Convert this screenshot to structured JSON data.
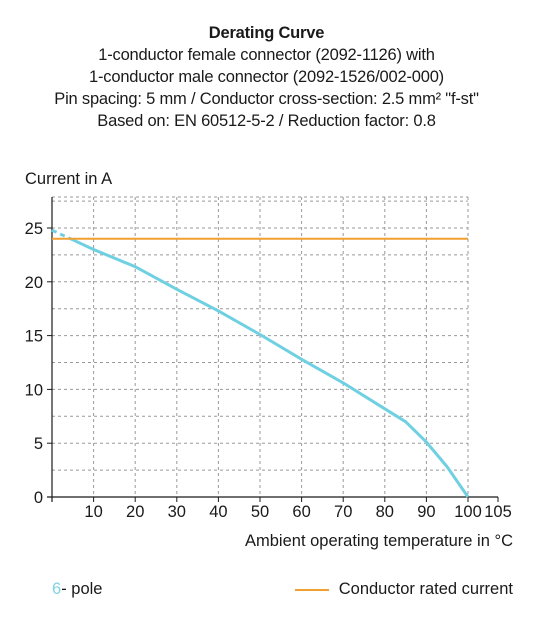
{
  "titles": {
    "main": "Derating Curve",
    "line1": "1-conductor female connector (2092-1126) with",
    "line2": "1-conductor male connector (2092-1526/002-000)",
    "line3": "Pin spacing: 5 mm / Conductor cross-section: 2.5 mm² \"f-st\"",
    "line4": "Based on: EN 60512-5-2 / Reduction factor: 0.8"
  },
  "chart_data": {
    "type": "line",
    "title": "Derating Curve",
    "xlabel": "Ambient operating temperature in °C",
    "ylabel": "Current in A",
    "xlim": [
      0,
      105
    ],
    "ylim": [
      0,
      25
    ],
    "x_ticks": [
      10,
      20,
      30,
      40,
      50,
      60,
      70,
      80,
      90,
      100,
      105
    ],
    "y_ticks": [
      0,
      5,
      10,
      15,
      20,
      25
    ],
    "grid": true,
    "series": [
      {
        "name": "6- pole",
        "color": "#6fd0e2",
        "dashed_segment": [
          [
            0,
            24.8
          ],
          [
            5,
            23.9
          ]
        ],
        "points": [
          [
            5,
            23.9
          ],
          [
            10,
            23.0
          ],
          [
            20,
            21.4
          ],
          [
            30,
            19.3
          ],
          [
            40,
            17.3
          ],
          [
            50,
            15.1
          ],
          [
            60,
            12.8
          ],
          [
            70,
            10.6
          ],
          [
            80,
            8.2
          ],
          [
            85,
            7.0
          ],
          [
            90,
            5.1
          ],
          [
            95,
            2.8
          ],
          [
            100,
            0
          ]
        ]
      },
      {
        "name": "Conductor rated current",
        "color": "#f0a030",
        "points": [
          [
            0,
            24
          ],
          [
            100,
            24
          ]
        ]
      }
    ]
  },
  "legend": {
    "pole_number": "6",
    "pole_text": "- pole",
    "rated_label": "Conductor rated current"
  }
}
